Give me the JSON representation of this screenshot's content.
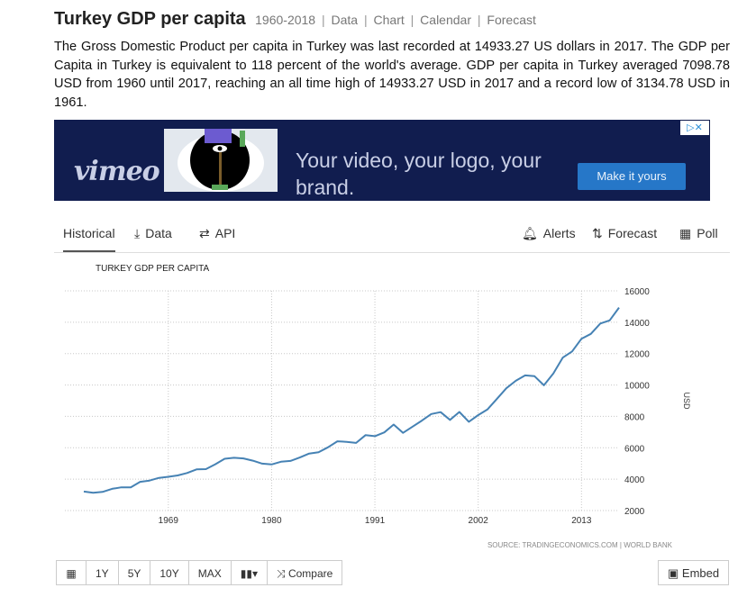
{
  "header": {
    "title": "Turkey GDP per capita",
    "years": "1960-2018",
    "links": [
      "Data",
      "Chart",
      "Calendar",
      "Forecast"
    ]
  },
  "description": "The Gross Domestic Product per capita in Turkey was last recorded at 14933.27 US dollars in 2017. The GDP per Capita in Turkey is equivalent to 118 percent of the world's average. GDP per capita in Turkey averaged 7098.78 USD from 1960 until 2017, reaching an all time high of 14933.27 USD in 2017 and a record low of 3134.78 USD in 1961.",
  "ad": {
    "logo": "vimeo",
    "headline": "Your video, your logo, your brand.",
    "button": "Make it yours",
    "background": "#111d4f"
  },
  "tabs": {
    "historical": "Historical",
    "data": "Data",
    "api": "API",
    "alerts": "Alerts",
    "forecast": "Forecast",
    "poll": "Poll"
  },
  "chart_data": {
    "type": "line",
    "title": "TURKEY GDP PER CAPITA",
    "ylabel": "USD",
    "source": "SOURCE: TRADINGECONOMICS.COM | WORLD BANK",
    "ylim": [
      2000,
      16000
    ],
    "xlim": [
      1960,
      2017
    ],
    "y_ticks": [
      2000,
      4000,
      6000,
      8000,
      10000,
      12000,
      14000,
      16000
    ],
    "x_ticks": [
      1969,
      1980,
      1991,
      2002,
      2013
    ],
    "grid": true,
    "line_color": "#4682b4",
    "series": [
      {
        "x": [
          1960,
          1961,
          1962,
          1963,
          1964,
          1965,
          1966,
          1967,
          1968,
          1969,
          1970,
          1971,
          1972,
          1973,
          1974,
          1975,
          1976,
          1977,
          1978,
          1979,
          1980,
          1981,
          1982,
          1983,
          1984,
          1985,
          1986,
          1987,
          1988,
          1989,
          1990,
          1991,
          1992,
          1993,
          1994,
          1995,
          1996,
          1997,
          1998,
          1999,
          2000,
          2001,
          2002,
          2003,
          2004,
          2005,
          2006,
          2007,
          2008,
          2009,
          2010,
          2011,
          2012,
          2013,
          2014,
          2015,
          2016,
          2017
        ],
        "values": [
          3210,
          3135,
          3190,
          3380,
          3480,
          3480,
          3830,
          3910,
          4080,
          4150,
          4240,
          4390,
          4620,
          4640,
          4950,
          5300,
          5360,
          5320,
          5180,
          4990,
          4940,
          5110,
          5160,
          5380,
          5630,
          5720,
          6030,
          6410,
          6380,
          6310,
          6800,
          6740,
          6980,
          7480,
          6950,
          7340,
          7730,
          8150,
          8270,
          7780,
          8280,
          7660,
          8080,
          8450,
          9120,
          9790,
          10270,
          10610,
          10560,
          9980,
          10730,
          11740,
          12140,
          12950,
          13260,
          13920,
          14120,
          14933
        ]
      }
    ]
  },
  "toolbar": {
    "calendar_icon": "calendar-icon",
    "ranges": [
      "1Y",
      "5Y",
      "10Y",
      "MAX"
    ],
    "compare": "Compare",
    "embed": "Embed"
  }
}
